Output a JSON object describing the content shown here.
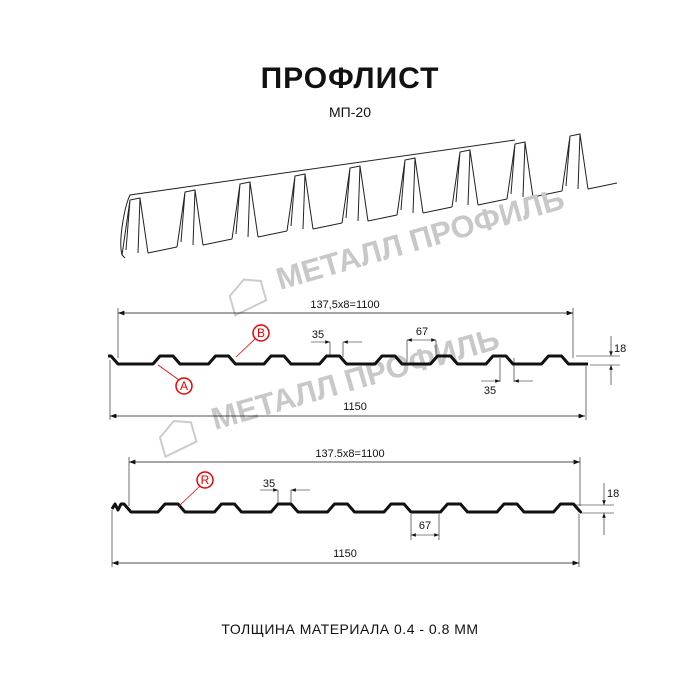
{
  "header": {
    "title": "ПРОФЛИСТ",
    "subtitle": "МП-20"
  },
  "watermark": "МЕТАЛЛ ПРОФИЛЬ",
  "profile_1": {
    "pitch_label": "137,5x8=1100",
    "total_width": "1150",
    "top_shelf": "35",
    "top_shelf_bottom": "35",
    "rib_width": "67",
    "height": "18",
    "marker_a": "A",
    "marker_b": "B"
  },
  "profile_2": {
    "pitch_label": "137.5x8=1100",
    "total_width": "1150",
    "top_shelf": "35",
    "rib_width": "67",
    "height": "18",
    "marker_r": "R"
  },
  "footer": {
    "thickness": "ТОЛЩИНА МАТЕРИАЛА 0.4 - 0.8 ММ"
  },
  "colors": {
    "marker": "#e00000",
    "line": "#111111",
    "watermark": "#c8c8c8"
  }
}
